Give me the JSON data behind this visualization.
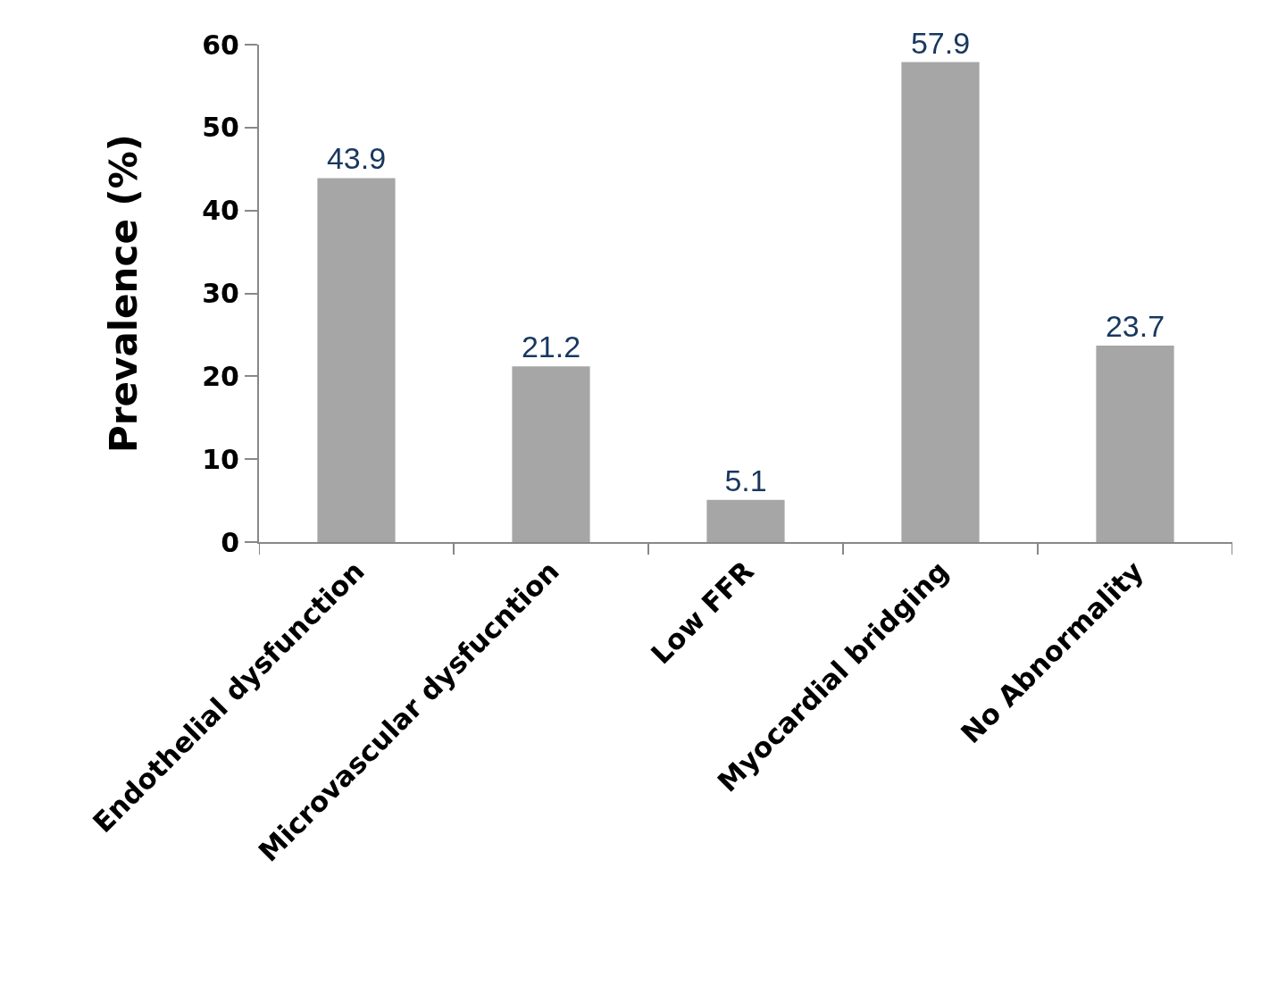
{
  "chart_data": {
    "type": "bar",
    "ylabel": "Prevalence (%)",
    "categories": [
      "Endothelial dysfunction",
      "Microvascular dysfucntion",
      "Low FFR",
      "Myocardial bridging",
      "No Abnormality"
    ],
    "values": [
      43.9,
      21.2,
      5.1,
      57.9,
      23.7
    ],
    "color": "#a6a6a6",
    "ylim": [
      0,
      60
    ],
    "yticks": [
      0,
      10,
      20,
      30,
      40,
      50,
      60
    ],
    "data_labels": true
  }
}
